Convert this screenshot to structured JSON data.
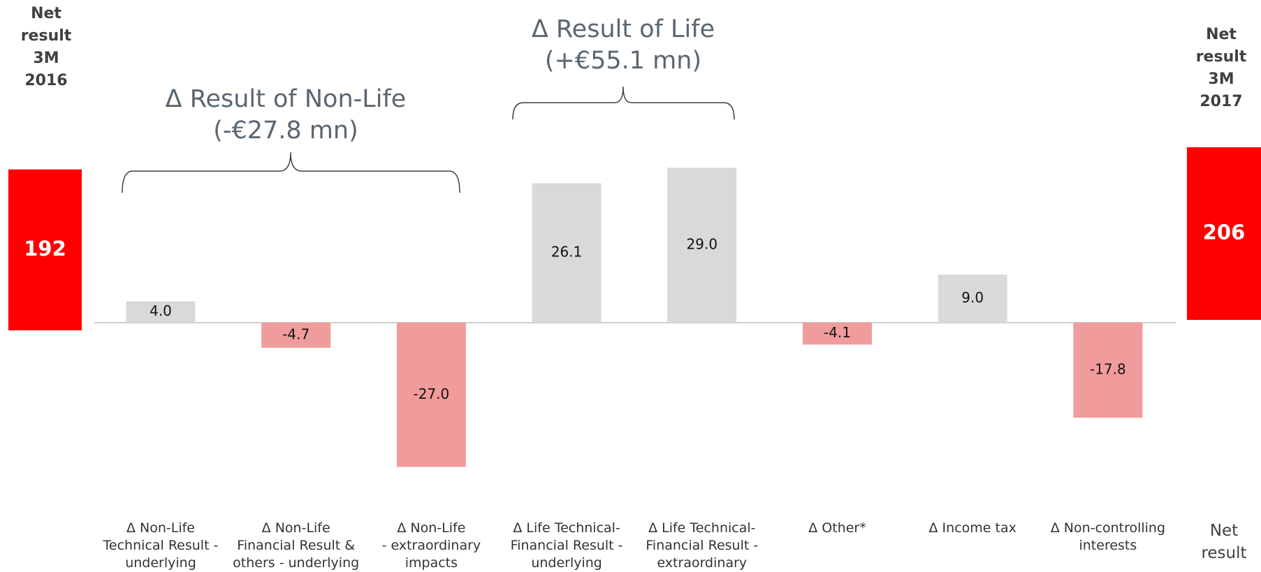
{
  "chart_data": {
    "type": "bar",
    "categories": [
      "Δ Non-Life\nTechnical Result -\nunderlying",
      "Δ Non-Life\nFinancial Result &\nothers - underlying",
      "Δ Non-Life\n- extraordinary\nimpacts",
      "Δ Life Technical-\nFinancial Result -\nunderlying",
      "Δ Life Technical-\nFinancial Result -\nextraordinary",
      "Δ Other*",
      "Δ Income tax",
      "Δ Non-controlling\ninterests"
    ],
    "values": [
      4.0,
      -4.7,
      -27.0,
      26.1,
      29.0,
      -4.1,
      9.0,
      -17.8
    ],
    "value_labels": [
      "4.0",
      "-4.7",
      "-27.0",
      "26.1",
      "29.0",
      "-4.1",
      "9.0",
      "-17.8"
    ],
    "positive_color": "#d9d9d9",
    "negative_color": "#f19c9c",
    "start": {
      "label": "Net\nresult\n3M\n2016",
      "value": 192
    },
    "end": {
      "label": "Net\nresult\n3M\n2017",
      "value": 206
    },
    "total_color": "#ff0000",
    "end_category": "Net\nresult",
    "annotations": [
      "Δ Result of Non-Life\n(-€27.8 mn)",
      "Δ Result of Life\n(+€55.1 mn)"
    ]
  }
}
